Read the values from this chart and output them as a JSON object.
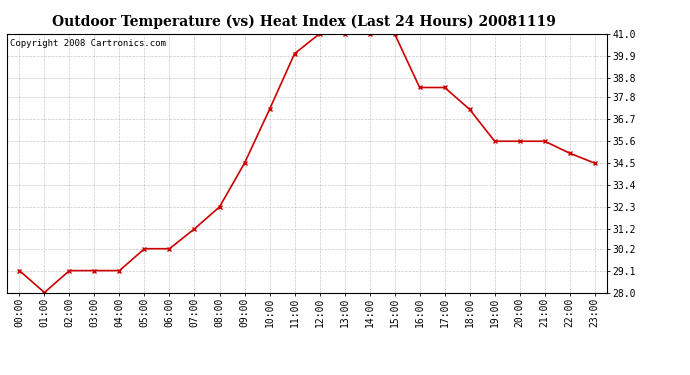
{
  "title": "Outdoor Temperature (vs) Heat Index (Last 24 Hours) 20081119",
  "copyright_text": "Copyright 2008 Cartronics.com",
  "x_labels": [
    "00:00",
    "01:00",
    "02:00",
    "03:00",
    "04:00",
    "05:00",
    "06:00",
    "07:00",
    "08:00",
    "09:00",
    "10:00",
    "11:00",
    "12:00",
    "13:00",
    "14:00",
    "15:00",
    "16:00",
    "17:00",
    "18:00",
    "19:00",
    "20:00",
    "21:00",
    "22:00",
    "23:00"
  ],
  "y_values": [
    29.1,
    28.0,
    29.1,
    29.1,
    29.1,
    30.2,
    30.2,
    31.2,
    32.3,
    34.5,
    37.2,
    40.0,
    41.0,
    41.0,
    41.0,
    41.0,
    38.3,
    38.3,
    37.2,
    35.6,
    35.6,
    35.6,
    35.0,
    34.5
  ],
  "line_color": "#cc0000",
  "marker": "x",
  "marker_color": "#cc0000",
  "marker_size": 3,
  "line_width": 1.2,
  "ylim": [
    28.0,
    41.0
  ],
  "yticks": [
    28.0,
    29.1,
    30.2,
    31.2,
    32.3,
    33.4,
    34.5,
    35.6,
    36.7,
    37.8,
    38.8,
    39.9,
    41.0
  ],
  "bg_color": "#ffffff",
  "plot_bg_color": "#ffffff",
  "grid_color": "#bbbbbb",
  "title_fontsize": 10,
  "copyright_fontsize": 6.5,
  "tick_fontsize": 7,
  "ytick_fontsize": 7
}
